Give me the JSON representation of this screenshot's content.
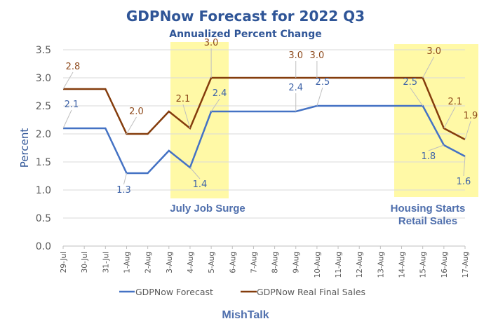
{
  "chart_data": {
    "type": "line",
    "title": "GDPNow Forecast for 2022 Q3",
    "subtitle": "Annualized Percent Change",
    "xlabel": "",
    "ylabel": "Percent",
    "footer": "MishTalk",
    "ylim": [
      0,
      3.5
    ],
    "yticks": [
      "0.0",
      "0.5",
      "1.0",
      "1.5",
      "2.0",
      "2.5",
      "3.0",
      "3.5"
    ],
    "grid": true,
    "legend_position": "bottom",
    "categories": [
      "29-Jul",
      "30-Jul",
      "31-Jul",
      "1-Aug",
      "2-Aug",
      "3-Aug",
      "4-Aug",
      "5-Aug",
      "6-Aug",
      "7-Aug",
      "8-Aug",
      "9-Aug",
      "10-Aug",
      "11-Aug",
      "12-Aug",
      "13-Aug",
      "14-Aug",
      "15-Aug",
      "16-Aug",
      "17-Aug"
    ],
    "series": [
      {
        "name": "GDPNow Forecast",
        "color": "#4472C4",
        "values": [
          2.1,
          2.1,
          2.1,
          1.3,
          1.3,
          1.7,
          1.4,
          2.4,
          2.4,
          2.4,
          2.4,
          2.4,
          2.5,
          2.5,
          2.5,
          2.5,
          2.5,
          2.5,
          1.8,
          1.6
        ],
        "labeled_points": [
          0,
          3,
          6,
          7,
          11,
          12,
          17,
          18,
          19
        ]
      },
      {
        "name": "GDPNow Real Final Sales",
        "color": "#843C0C",
        "values": [
          2.8,
          2.8,
          2.8,
          2.0,
          2.0,
          2.4,
          2.1,
          3.0,
          3.0,
          3.0,
          3.0,
          3.0,
          3.0,
          3.0,
          3.0,
          3.0,
          3.0,
          3.0,
          2.1,
          1.9
        ],
        "labeled_points": [
          0,
          3,
          6,
          7,
          11,
          12,
          17,
          18,
          19
        ]
      }
    ],
    "highlights": [
      {
        "label_lines": [
          "July Job Surge"
        ],
        "from_category": "3-Aug",
        "to_category": "5-Aug",
        "color": "#FFF9A6"
      },
      {
        "label_lines": [
          "Housing Starts",
          "Retail Sales"
        ],
        "from_category": "14-Aug",
        "to_category": "17-Aug",
        "color": "#FFF9A6"
      }
    ]
  }
}
